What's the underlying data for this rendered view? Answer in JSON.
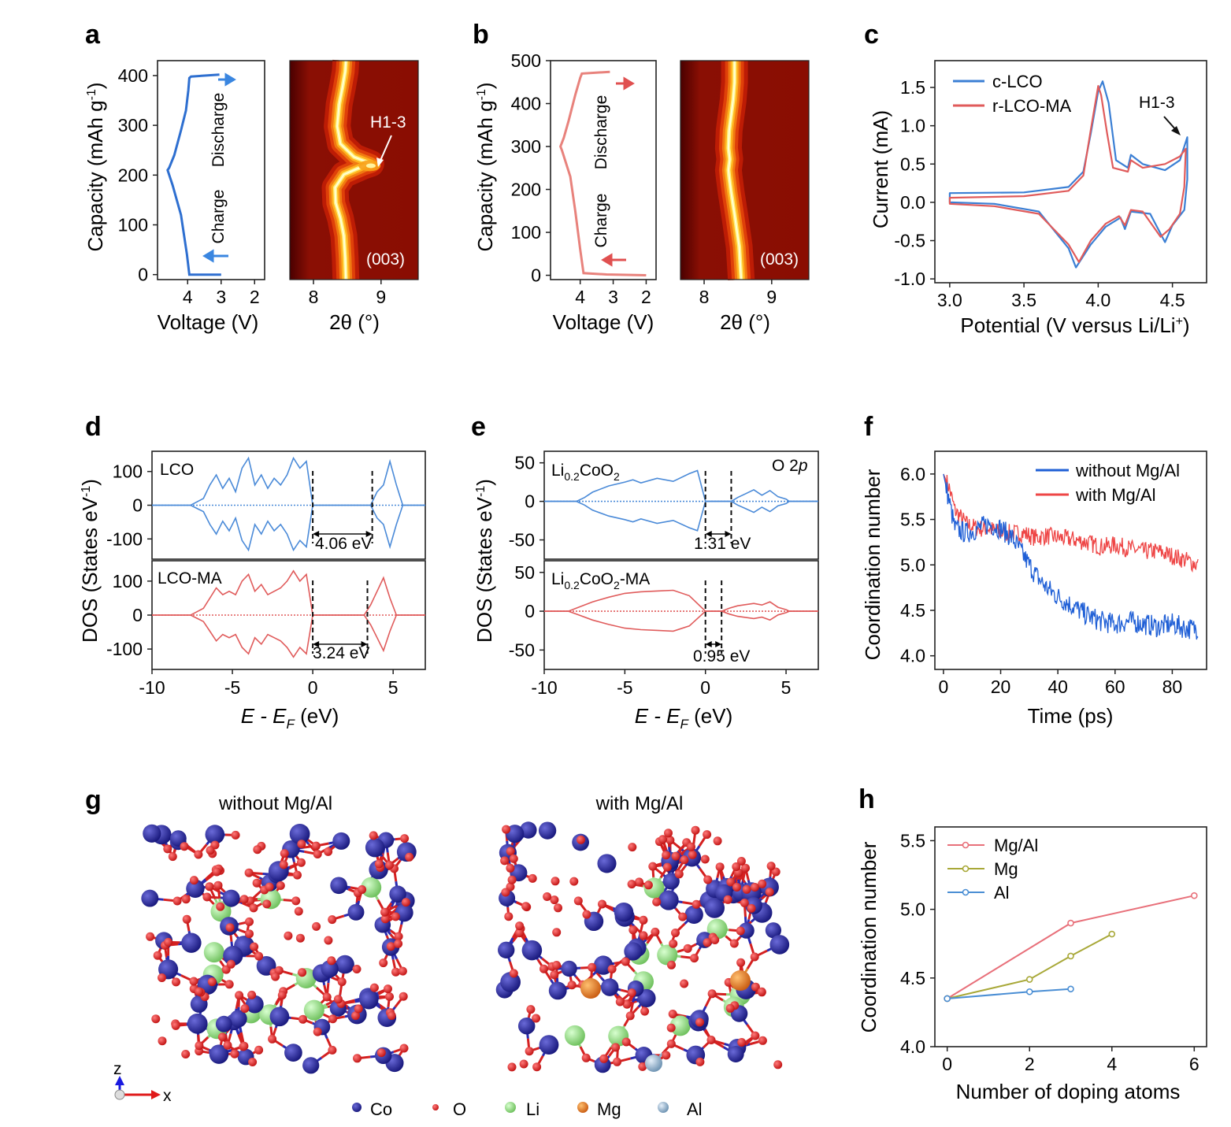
{
  "panels": {
    "a": {
      "label": "a",
      "voltage": {
        "ylabel": "Capacity (mAh g",
        "ylabel_sup": "-1",
        "ylabel_close": ")",
        "xlabel": "Voltage (V)",
        "xticks": [
          "4",
          "3",
          "2"
        ],
        "yticks": [
          "0",
          "100",
          "200",
          "300",
          "400"
        ],
        "xlim": [
          4.9,
          1.7
        ],
        "ylim": [
          -10,
          430
        ],
        "curve_v": [
          3.0,
          3.5,
          3.95,
          4.02,
          4.2,
          4.45,
          4.6,
          4.55,
          4.4,
          4.2,
          4.05,
          3.98,
          3.95,
          3.9,
          3.05
        ],
        "curve_cap": [
          0,
          0,
          0,
          40,
          120,
          180,
          210,
          215,
          240,
          290,
          330,
          370,
          395,
          398,
          402
        ],
        "charge_label": "Charge",
        "discharge_label": "Discharge",
        "color": "#2e6fd0"
      },
      "xrd": {
        "xlabel": "2θ (°)",
        "xticks": [
          "8",
          "9"
        ],
        "xlim": [
          7.65,
          9.55
        ],
        "peak_2theta": [
          8.48,
          8.47,
          8.45,
          8.4,
          8.33,
          8.32,
          8.45,
          8.75,
          8.85,
          8.6,
          8.4,
          8.35,
          8.38,
          8.43,
          8.47,
          8.48
        ],
        "peak_cap_frac": [
          0,
          0.1,
          0.2,
          0.28,
          0.35,
          0.42,
          0.48,
          0.52,
          0.53,
          0.56,
          0.62,
          0.7,
          0.8,
          0.88,
          0.95,
          1.0
        ],
        "annotation": "H1-3",
        "index_label": "(003)"
      }
    },
    "b": {
      "label": "b",
      "voltage": {
        "ylabel": "Capacity (mAh g",
        "ylabel_sup": "-1",
        "ylabel_close": ")",
        "xlabel": "Voltage (V)",
        "xticks": [
          "4",
          "3",
          "2"
        ],
        "yticks": [
          "0",
          "100",
          "200",
          "300",
          "400",
          "500"
        ],
        "xlim": [
          4.9,
          1.7
        ],
        "ylim": [
          -10,
          500
        ],
        "curve_v": [
          2.0,
          3.2,
          3.9,
          4.0,
          4.15,
          4.3,
          4.55,
          4.6,
          4.5,
          4.35,
          4.15,
          4.0,
          3.95,
          3.1
        ],
        "curve_cap": [
          0,
          2,
          5,
          60,
          150,
          230,
          290,
          300,
          320,
          360,
          420,
          460,
          470,
          474
        ],
        "charge_label": "Charge",
        "discharge_label": "Discharge",
        "color": "#e8827c"
      },
      "xrd": {
        "xlabel": "2θ (°)",
        "xticks": [
          "8",
          "9"
        ],
        "xlim": [
          7.65,
          9.55
        ],
        "peak_2theta": [
          8.55,
          8.52,
          8.45,
          8.4,
          8.37,
          8.36,
          8.38,
          8.36,
          8.37,
          8.4,
          8.43,
          8.45,
          8.45,
          8.45
        ],
        "peak_cap_frac": [
          0,
          0.15,
          0.3,
          0.4,
          0.47,
          0.5,
          0.55,
          0.6,
          0.68,
          0.75,
          0.82,
          0.9,
          0.95,
          1.0
        ],
        "index_label": "(003)"
      }
    },
    "c": {
      "label": "c",
      "xlabel": "Potential (V versus Li/Li",
      "xlabel_sup": "+",
      "xlabel_close": ")",
      "ylabel": "Current (mA)",
      "xticks": [
        "3.0",
        "3.5",
        "4.0",
        "4.5"
      ],
      "yticks": [
        "-1.0",
        "-0.5",
        "0.0",
        "0.5",
        "1.0",
        "1.5"
      ],
      "xlim": [
        2.9,
        4.73
      ],
      "ylim": [
        -1.05,
        1.85
      ],
      "legend": [
        "c-LCO",
        "r-LCO-MA"
      ],
      "annotation": "H1-3"
    },
    "d": {
      "label": "d",
      "ylabel": "DOS (States eV",
      "ylabel_sup": "-1",
      "ylabel_close": ")",
      "xlabel_italic": "E - E",
      "xlabel_sub": "F",
      "xlabel_rest": " (eV)",
      "xticks": [
        "-10",
        "-5",
        "0",
        "5"
      ],
      "yticks_top": [
        "100",
        "0",
        "-100"
      ],
      "yticks_bottom": [
        "100",
        "0",
        "-100"
      ],
      "top_label": "LCO",
      "bottom_label": "LCO-MA",
      "gap_top": "4.06 eV",
      "gap_bottom": "3.24 eV"
    },
    "e": {
      "label": "e",
      "ylabel": "DOS (States eV",
      "ylabel_sup": "-1",
      "ylabel_close": ")",
      "xlabel_italic": "E - E",
      "xlabel_sub": "F",
      "xlabel_rest": " (eV)",
      "xticks": [
        "-10",
        "-5",
        "0",
        "5"
      ],
      "yticks_top": [
        "50",
        "0",
        "-50"
      ],
      "yticks_bottom": [
        "50",
        "0",
        "-50"
      ],
      "top_label_main": "Li",
      "top_label_sub": "0.2",
      "top_label_rest": "CoO",
      "top_label_sub2": "2",
      "bottom_label_rest2": "-MA",
      "orbital_label_a": "O 2",
      "orbital_label_b": "p",
      "gap_top": "1.31 eV",
      "gap_bottom": "0.95 eV"
    },
    "f": {
      "label": "f",
      "xlabel": "Time (ps)",
      "ylabel": "Coordination number",
      "xticks": [
        "0",
        "20",
        "40",
        "60",
        "80"
      ],
      "yticks": [
        "4.0",
        "4.5",
        "5.0",
        "5.5",
        "6.0"
      ],
      "xlim": [
        -3,
        92
      ],
      "ylim": [
        3.85,
        6.25
      ],
      "legend": [
        "without Mg/Al",
        "with Mg/Al"
      ]
    },
    "g": {
      "label": "g",
      "title_left": "without Mg/Al",
      "title_right": "with Mg/Al",
      "axis_z": "z",
      "axis_x": "x",
      "legend": [
        "Co",
        "O",
        "Li",
        "Mg",
        "Al"
      ]
    },
    "h": {
      "label": "h",
      "xlabel": "Number of doping atoms",
      "ylabel": "Coordination number"
    }
  },
  "chart_data": [
    {
      "panel": "c",
      "type": "line",
      "title": "",
      "xlabel": "Potential (V versus Li/Li+)",
      "ylabel": "Current (mA)",
      "xlim": [
        2.9,
        4.73
      ],
      "ylim": [
        -1.05,
        1.85
      ],
      "series": [
        {
          "name": "c-LCO",
          "color": "#3b7fd4",
          "x": [
            3.0,
            3.5,
            3.8,
            3.9,
            3.95,
            4.0,
            4.03,
            4.07,
            4.12,
            4.2,
            4.22,
            4.3,
            4.45,
            4.55,
            4.6,
            4.6,
            4.58,
            4.5,
            4.45,
            4.35,
            4.22,
            4.18,
            4.15,
            4.05,
            3.95,
            3.85,
            3.8,
            3.6,
            3.3,
            3.0
          ],
          "y": [
            0.12,
            0.13,
            0.2,
            0.4,
            0.9,
            1.45,
            1.58,
            1.3,
            0.55,
            0.45,
            0.62,
            0.5,
            0.42,
            0.55,
            0.85,
            0.3,
            -0.1,
            -0.3,
            -0.52,
            -0.15,
            -0.12,
            -0.35,
            -0.2,
            -0.32,
            -0.55,
            -0.85,
            -0.6,
            -0.12,
            -0.02,
            0.0
          ]
        },
        {
          "name": "r-LCO-MA",
          "color": "#e05b5b",
          "x": [
            3.0,
            3.5,
            3.8,
            3.9,
            3.95,
            4.0,
            4.02,
            4.06,
            4.1,
            4.2,
            4.22,
            4.3,
            4.45,
            4.55,
            4.59,
            4.58,
            4.55,
            4.48,
            4.42,
            4.3,
            4.22,
            4.18,
            4.14,
            4.05,
            3.95,
            3.87,
            3.8,
            3.6,
            3.3,
            3.0
          ],
          "y": [
            0.06,
            0.08,
            0.15,
            0.35,
            0.95,
            1.52,
            1.4,
            0.9,
            0.45,
            0.4,
            0.55,
            0.45,
            0.5,
            0.6,
            0.7,
            0.2,
            -0.15,
            -0.35,
            -0.45,
            -0.12,
            -0.1,
            -0.3,
            -0.18,
            -0.28,
            -0.5,
            -0.78,
            -0.55,
            -0.15,
            -0.05,
            -0.02
          ]
        }
      ]
    },
    {
      "panel": "d",
      "type": "line",
      "xlabel": "E - E_F (eV)",
      "ylabel": "DOS (States eV-1)",
      "xlim": [
        -10,
        7
      ],
      "series": [
        {
          "name": "LCO",
          "color": "#4a8ad8",
          "ylim": [
            -160,
            160
          ],
          "x": [
            -10,
            -7.6,
            -7.2,
            -6.8,
            -6.4,
            -6.0,
            -5.6,
            -5.2,
            -4.8,
            -4.4,
            -4.0,
            -3.6,
            -3.2,
            -2.8,
            -2.4,
            -2.0,
            -1.6,
            -1.2,
            -0.8,
            -0.4,
            0.0,
            3.6,
            4.0,
            4.4,
            4.8,
            5.2,
            5.6,
            7
          ],
          "y": [
            0,
            0,
            10,
            20,
            60,
            90,
            50,
            80,
            40,
            110,
            140,
            60,
            90,
            50,
            80,
            60,
            90,
            140,
            110,
            130,
            0,
            0,
            40,
            60,
            130,
            60,
            0,
            0
          ]
        },
        {
          "name": "LCO-MA",
          "color": "#e05b5b",
          "ylim": [
            -160,
            160
          ],
          "x": [
            -10,
            -7.6,
            -7.2,
            -6.8,
            -6.4,
            -6.0,
            -5.6,
            -5.2,
            -4.8,
            -4.4,
            -4.0,
            -3.6,
            -3.2,
            -2.8,
            -2.4,
            -2.0,
            -1.6,
            -1.2,
            -0.8,
            -0.4,
            0.0,
            3.2,
            3.6,
            4.0,
            4.4,
            4.8,
            5.2,
            7
          ],
          "y": [
            0,
            0,
            10,
            20,
            50,
            80,
            60,
            70,
            60,
            100,
            120,
            70,
            90,
            60,
            70,
            80,
            100,
            130,
            100,
            120,
            0,
            0,
            30,
            70,
            110,
            50,
            0,
            0
          ]
        }
      ],
      "annotations": [
        "4.06 eV",
        "3.24 eV"
      ]
    },
    {
      "panel": "e",
      "type": "line",
      "xlabel": "E - E_F (eV)",
      "ylabel": "DOS (States eV-1)",
      "xlim": [
        -10,
        7
      ],
      "series": [
        {
          "name": "Li0.2CoO2",
          "color": "#4a8ad8",
          "ylim": [
            -75,
            65
          ],
          "x": [
            -10,
            -8.0,
            -7.5,
            -7.0,
            -6.0,
            -5.0,
            -4.5,
            -4.0,
            -3.0,
            -2.0,
            -1.0,
            -0.5,
            0.0,
            1.6,
            2.0,
            2.5,
            3.0,
            3.5,
            4.0,
            4.5,
            5.0,
            5.2,
            7
          ],
          "y": [
            0,
            0,
            5,
            12,
            20,
            25,
            28,
            24,
            30,
            26,
            36,
            40,
            0,
            0,
            5,
            10,
            15,
            8,
            14,
            6,
            3,
            0,
            0
          ]
        },
        {
          "name": "Li0.2CoO2-MA",
          "color": "#e05b5b",
          "ylim": [
            -75,
            65
          ],
          "x": [
            -10,
            -8.5,
            -8.0,
            -7.0,
            -6.0,
            -5.0,
            -4.0,
            -3.0,
            -2.0,
            -1.0,
            0.0,
            1.0,
            1.5,
            2.0,
            3.0,
            3.5,
            4.0,
            4.5,
            5.0,
            5.2,
            7
          ],
          "y": [
            0,
            0,
            4,
            12,
            18,
            23,
            25,
            26,
            27,
            20,
            0,
            0,
            4,
            7,
            10,
            8,
            12,
            5,
            2,
            0,
            0
          ]
        }
      ],
      "annotations": [
        "1.31 eV",
        "0.95 eV"
      ]
    },
    {
      "panel": "f",
      "type": "line",
      "xlabel": "Time (ps)",
      "ylabel": "Coordination number",
      "xlim": [
        -3,
        92
      ],
      "ylim": [
        3.85,
        6.25
      ],
      "series": [
        {
          "name": "without Mg/Al",
          "color": "#1f5fd6",
          "x": [
            0,
            2,
            4,
            8,
            12,
            16,
            20,
            24,
            28,
            32,
            36,
            40,
            45,
            50,
            55,
            60,
            65,
            70,
            75,
            80,
            85,
            89
          ],
          "y": [
            6.0,
            5.7,
            5.4,
            5.35,
            5.4,
            5.45,
            5.4,
            5.3,
            5.1,
            4.9,
            4.75,
            4.65,
            4.55,
            4.45,
            4.38,
            4.35,
            4.38,
            4.35,
            4.32,
            4.35,
            4.3,
            4.3
          ]
        },
        {
          "name": "with Mg/Al",
          "color": "#ee4646",
          "x": [
            0,
            2,
            4,
            8,
            12,
            16,
            20,
            24,
            28,
            32,
            36,
            40,
            45,
            50,
            55,
            60,
            65,
            70,
            75,
            80,
            85,
            89
          ],
          "y": [
            6.0,
            5.85,
            5.6,
            5.45,
            5.4,
            5.4,
            5.35,
            5.35,
            5.35,
            5.3,
            5.32,
            5.3,
            5.28,
            5.25,
            5.2,
            5.22,
            5.18,
            5.15,
            5.15,
            5.1,
            5.05,
            5.0
          ]
        }
      ]
    },
    {
      "panel": "h",
      "type": "line",
      "xlabel": "Number of doping atoms",
      "ylabel": "Coordination number",
      "xticks": [
        "0",
        "2",
        "4",
        "6"
      ],
      "yticks": [
        "4.0",
        "4.5",
        "5.0",
        "5.5"
      ],
      "xlim": [
        -0.3,
        6.3
      ],
      "ylim": [
        4.0,
        5.6
      ],
      "series": [
        {
          "name": "Mg/Al",
          "color": "#e8707a",
          "x": [
            0,
            3,
            6
          ],
          "y": [
            4.35,
            4.9,
            5.1
          ]
        },
        {
          "name": "Mg",
          "color": "#a8a838",
          "x": [
            0,
            2,
            3,
            4
          ],
          "y": [
            4.35,
            4.49,
            4.66,
            4.82
          ]
        },
        {
          "name": "Al",
          "color": "#4a8ed4",
          "x": [
            0,
            2,
            3
          ],
          "y": [
            4.35,
            4.4,
            4.42
          ]
        }
      ]
    }
  ],
  "colors": {
    "blue": "#2e6fd0",
    "red": "#e05b5b",
    "co": "#22229a",
    "o": "#dd2222",
    "li": "#8fd67e",
    "mg": "#e07a20",
    "al": "#8fb3d0"
  }
}
